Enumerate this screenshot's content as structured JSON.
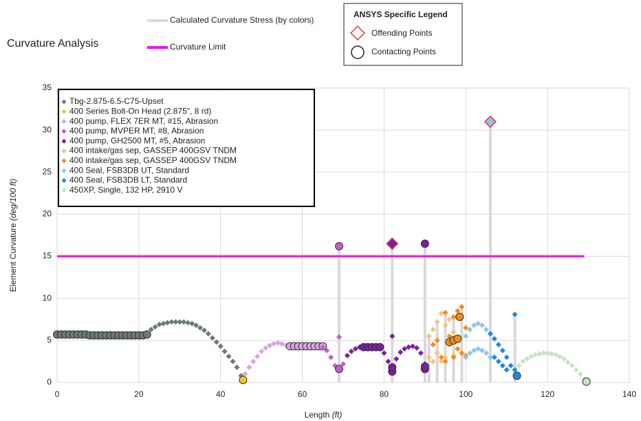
{
  "chart_data": {
    "type": "scatter",
    "title": "Curvature Analysis",
    "xlabel": "Length",
    "xlabel_unit": "(ft)",
    "ylabel": "Element Curvature",
    "ylabel_unit": "(deg/100 ft)",
    "xlim": [
      0,
      140
    ],
    "xticks": [
      0,
      20,
      40,
      60,
      80,
      100,
      120,
      140
    ],
    "ylim": [
      0,
      35
    ],
    "yticks": [
      0,
      5,
      10,
      15,
      20,
      25,
      30,
      35
    ],
    "grid": true,
    "stress_legend": {
      "name": "Calculated Curvature Stress (by colors)",
      "color": "#d9d9d9"
    },
    "limit": {
      "name": "Curvature Limit",
      "color": "#ff00ff",
      "value": 15,
      "x": [
        0,
        129
      ]
    },
    "ansys_legend": {
      "title": "ANSYS Specific Legend",
      "offending": "Offending Points",
      "contacting": "Contacting Points"
    },
    "stress_lines": {
      "x": [
        69,
        82,
        90,
        106,
        112,
        91,
        93,
        95,
        97,
        99
      ],
      "values": [
        16.2,
        16.5,
        16.5,
        31,
        8.1,
        5.5,
        7.2,
        8.3,
        7.8,
        9.0
      ]
    },
    "series": [
      {
        "name": "Tbg-2.875-6.5-C75-Upset",
        "color": "#6d7a75",
        "x": [
          22,
          23,
          24,
          25,
          26,
          27,
          28,
          29,
          30,
          31,
          32,
          33,
          34,
          35,
          36,
          37,
          38,
          39,
          40,
          41,
          42,
          43,
          44,
          45
        ],
        "values": [
          5.8,
          6.3,
          6.6,
          6.9,
          7.0,
          7.1,
          7.2,
          7.2,
          7.2,
          7.2,
          7.1,
          7.0,
          6.8,
          6.5,
          6.2,
          5.8,
          5.3,
          4.8,
          4.3,
          3.7,
          3.1,
          2.5,
          1.8,
          0.8
        ],
        "contact_x": [
          0,
          1,
          2,
          3,
          4,
          5,
          6,
          7,
          8,
          9,
          10,
          11,
          12,
          13,
          14,
          15,
          16,
          17,
          18,
          19,
          20,
          21,
          22
        ],
        "contact_values": [
          5.7,
          5.7,
          5.7,
          5.7,
          5.7,
          5.7,
          5.7,
          5.7,
          5.6,
          5.6,
          5.6,
          5.6,
          5.6,
          5.6,
          5.6,
          5.6,
          5.6,
          5.6,
          5.6,
          5.6,
          5.6,
          5.6,
          5.7
        ]
      },
      {
        "name": "400 Series Bolt-On Head (2.875\", 8 rd)",
        "color": "#f5c518",
        "x": [],
        "values": [],
        "contact_x": [
          45.5
        ],
        "contact_values": [
          0.3
        ]
      },
      {
        "name": "400 pump, FLEX 7ER MT, #15, Abrasion",
        "color": "#d9a3e0",
        "x": [
          46,
          47,
          48,
          49,
          50,
          51,
          52,
          53,
          54,
          55,
          56
        ],
        "values": [
          1.0,
          1.8,
          2.5,
          3.1,
          3.7,
          4.1,
          4.4,
          4.6,
          4.7,
          4.6,
          4.4
        ],
        "contact_x": [
          57,
          58,
          59,
          60,
          61,
          62,
          63,
          64,
          65
        ],
        "contact_values": [
          4.3,
          4.3,
          4.3,
          4.3,
          4.3,
          4.3,
          4.3,
          4.3,
          4.3
        ]
      },
      {
        "name": "400 pump, MVPER MT, #8, Abrasion",
        "color": "#c05fc9",
        "x": [
          65,
          66,
          67,
          68,
          69,
          70
        ],
        "values": [
          4.2,
          3.8,
          3.0,
          2.0,
          5.4,
          2.2
        ],
        "contact_x": [
          69,
          69
        ],
        "contact_values": [
          16.2,
          1.6
        ]
      },
      {
        "name": "400 pump, GH2500 MT, #5, Abrasion",
        "color": "#7b1fa2",
        "x": [
          71,
          72,
          73,
          74,
          80,
          81,
          82,
          83,
          84,
          85,
          86,
          87,
          88,
          89,
          90
        ],
        "values": [
          3.2,
          3.7,
          4.0,
          4.2,
          3.5,
          2.5,
          5.5,
          2.8,
          3.6,
          4.0,
          4.2,
          4.3,
          4.1,
          3.5,
          2.2
        ],
        "contact_x": [
          75,
          76,
          77,
          78,
          79,
          82,
          82,
          90,
          90,
          90
        ],
        "contact_values": [
          4.2,
          4.2,
          4.2,
          4.2,
          4.2,
          1.3,
          1.8,
          16.5,
          1.6,
          1.9
        ],
        "offend_x": [
          82
        ],
        "offend_values": [
          16.5
        ]
      },
      {
        "name": "400 intake/gas sep, GASSEP 400GSV TNDM",
        "color": "#f7c27a",
        "x": [
          91,
          91,
          92,
          92,
          93,
          93,
          94,
          94,
          95,
          95,
          96,
          96,
          97,
          97
        ],
        "values": [
          3.0,
          5.5,
          2.5,
          6.3,
          3.5,
          7.2,
          2.5,
          8.2,
          3.0,
          6.8,
          4.5,
          7.5,
          3.2,
          6.0
        ]
      },
      {
        "name": "400 intake/gas sep, GASSEP 400GSV TNDM",
        "color": "#f08c1a",
        "x": [
          92,
          93,
          94,
          95,
          96,
          97,
          98,
          99,
          100,
          95,
          97,
          98,
          99,
          100
        ],
        "values": [
          4.5,
          5.0,
          3.0,
          8.3,
          5.5,
          7.8,
          8.5,
          9.0,
          6.5,
          2.5,
          3.0,
          4.0,
          3.5,
          3.2
        ],
        "contact_x": [
          96,
          97,
          98,
          98.5
        ],
        "contact_values": [
          4.8,
          5.0,
          5.2,
          7.8
        ]
      },
      {
        "name": "400 Seal, FSB3DB UT, Standard",
        "color": "#8ec5ef",
        "x": [
          100,
          100,
          101,
          101,
          102,
          102,
          103,
          103,
          104,
          104,
          105,
          105,
          106,
          106
        ],
        "values": [
          3.0,
          5.5,
          3.5,
          6.3,
          3.8,
          6.8,
          4.0,
          7.0,
          3.8,
          6.8,
          3.5,
          6.3,
          3.0,
          5.8
        ],
        "offend_x": [
          106
        ],
        "offend_values": [
          31.0
        ]
      },
      {
        "name": "400 Seal, FSB3DB LT, Standard",
        "color": "#1e88e5",
        "x": [
          106,
          107,
          108,
          109,
          110,
          111,
          112,
          107,
          108,
          109,
          110,
          112
        ],
        "values": [
          5.8,
          5.2,
          4.5,
          3.8,
          3.0,
          2.0,
          1.5,
          3.0,
          2.5,
          2.0,
          1.5,
          8.1
        ],
        "contact_x": [
          112.5
        ],
        "contact_values": [
          0.8
        ]
      },
      {
        "name": "450XP, Single, 132 HP, 2910 V",
        "color": "#c5e3c5",
        "x": [
          113,
          114,
          115,
          116,
          117,
          118,
          119,
          120,
          121,
          122,
          123,
          124,
          125,
          126,
          127,
          128,
          129
        ],
        "values": [
          2.0,
          2.5,
          2.8,
          3.1,
          3.3,
          3.4,
          3.5,
          3.5,
          3.4,
          3.3,
          3.1,
          2.8,
          2.4,
          2.0,
          1.5,
          1.0,
          0.4
        ],
        "contact_x": [
          129.5
        ],
        "contact_values": [
          0.1
        ]
      }
    ]
  }
}
